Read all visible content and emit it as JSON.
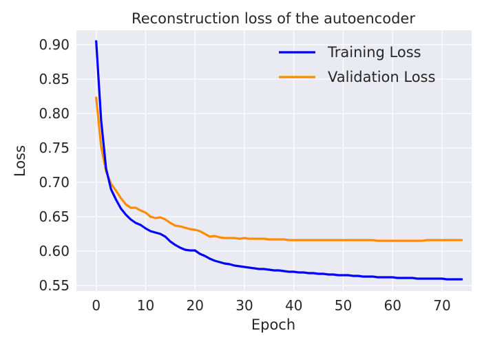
{
  "chart_data": {
    "type": "line",
    "title": "Reconstruction loss of the autoencoder",
    "xlabel": "Epoch",
    "ylabel": "Loss",
    "xlim": [
      -4,
      76
    ],
    "ylim": [
      0.542,
      0.921
    ],
    "xticks": [
      0,
      10,
      20,
      30,
      40,
      50,
      60,
      70
    ],
    "yticks": [
      0.55,
      0.6,
      0.65,
      0.7,
      0.75,
      0.8,
      0.85,
      0.9
    ],
    "grid": true,
    "legend_position": "top-right",
    "colors": {
      "background": "#eaeaf2",
      "grid": "#ffffff"
    },
    "series": [
      {
        "name": "Training Loss",
        "color": "#0000ff",
        "x": [
          0,
          1,
          2,
          3,
          4,
          5,
          6,
          7,
          8,
          9,
          10,
          11,
          12,
          13,
          14,
          15,
          16,
          17,
          18,
          19,
          20,
          21,
          22,
          23,
          24,
          25,
          26,
          27,
          28,
          29,
          30,
          31,
          32,
          33,
          34,
          35,
          36,
          37,
          38,
          39,
          40,
          41,
          42,
          43,
          44,
          45,
          46,
          47,
          48,
          49,
          50,
          51,
          52,
          53,
          54,
          55,
          56,
          57,
          58,
          59,
          60,
          61,
          62,
          63,
          64,
          65,
          66,
          67,
          68,
          69,
          70,
          71,
          72,
          73,
          74
        ],
        "values": [
          0.905,
          0.79,
          0.72,
          0.69,
          0.675,
          0.662,
          0.653,
          0.646,
          0.641,
          0.638,
          0.633,
          0.629,
          0.627,
          0.625,
          0.621,
          0.614,
          0.609,
          0.605,
          0.602,
          0.601,
          0.601,
          0.596,
          0.593,
          0.589,
          0.586,
          0.584,
          0.582,
          0.581,
          0.579,
          0.578,
          0.577,
          0.576,
          0.575,
          0.574,
          0.574,
          0.573,
          0.572,
          0.572,
          0.571,
          0.57,
          0.57,
          0.569,
          0.569,
          0.568,
          0.568,
          0.567,
          0.567,
          0.566,
          0.566,
          0.565,
          0.565,
          0.565,
          0.564,
          0.564,
          0.563,
          0.563,
          0.563,
          0.562,
          0.562,
          0.562,
          0.562,
          0.561,
          0.561,
          0.561,
          0.561,
          0.56,
          0.56,
          0.56,
          0.56,
          0.56,
          0.56,
          0.559,
          0.559,
          0.559,
          0.559
        ]
      },
      {
        "name": "Validation Loss",
        "color": "#ff8c00",
        "x": [
          0,
          1,
          2,
          3,
          4,
          5,
          6,
          7,
          8,
          9,
          10,
          11,
          12,
          13,
          14,
          15,
          16,
          17,
          18,
          19,
          20,
          21,
          22,
          23,
          24,
          25,
          26,
          27,
          28,
          29,
          30,
          31,
          32,
          33,
          34,
          35,
          36,
          37,
          38,
          39,
          40,
          41,
          42,
          43,
          44,
          45,
          46,
          47,
          48,
          49,
          50,
          51,
          52,
          53,
          54,
          55,
          56,
          57,
          58,
          59,
          60,
          61,
          62,
          63,
          64,
          65,
          66,
          67,
          68,
          69,
          70,
          71,
          72,
          73,
          74
        ],
        "values": [
          0.823,
          0.752,
          0.716,
          0.698,
          0.688,
          0.677,
          0.668,
          0.663,
          0.663,
          0.659,
          0.656,
          0.65,
          0.648,
          0.649,
          0.646,
          0.641,
          0.637,
          0.636,
          0.634,
          0.632,
          0.631,
          0.629,
          0.625,
          0.621,
          0.622,
          0.62,
          0.619,
          0.619,
          0.619,
          0.618,
          0.619,
          0.618,
          0.618,
          0.618,
          0.618,
          0.617,
          0.617,
          0.617,
          0.617,
          0.616,
          0.616,
          0.616,
          0.616,
          0.616,
          0.616,
          0.616,
          0.616,
          0.616,
          0.616,
          0.616,
          0.616,
          0.616,
          0.616,
          0.616,
          0.616,
          0.616,
          0.616,
          0.615,
          0.615,
          0.615,
          0.615,
          0.615,
          0.615,
          0.615,
          0.615,
          0.615,
          0.615,
          0.616,
          0.616,
          0.616,
          0.616,
          0.616,
          0.616,
          0.616,
          0.616
        ]
      }
    ]
  }
}
